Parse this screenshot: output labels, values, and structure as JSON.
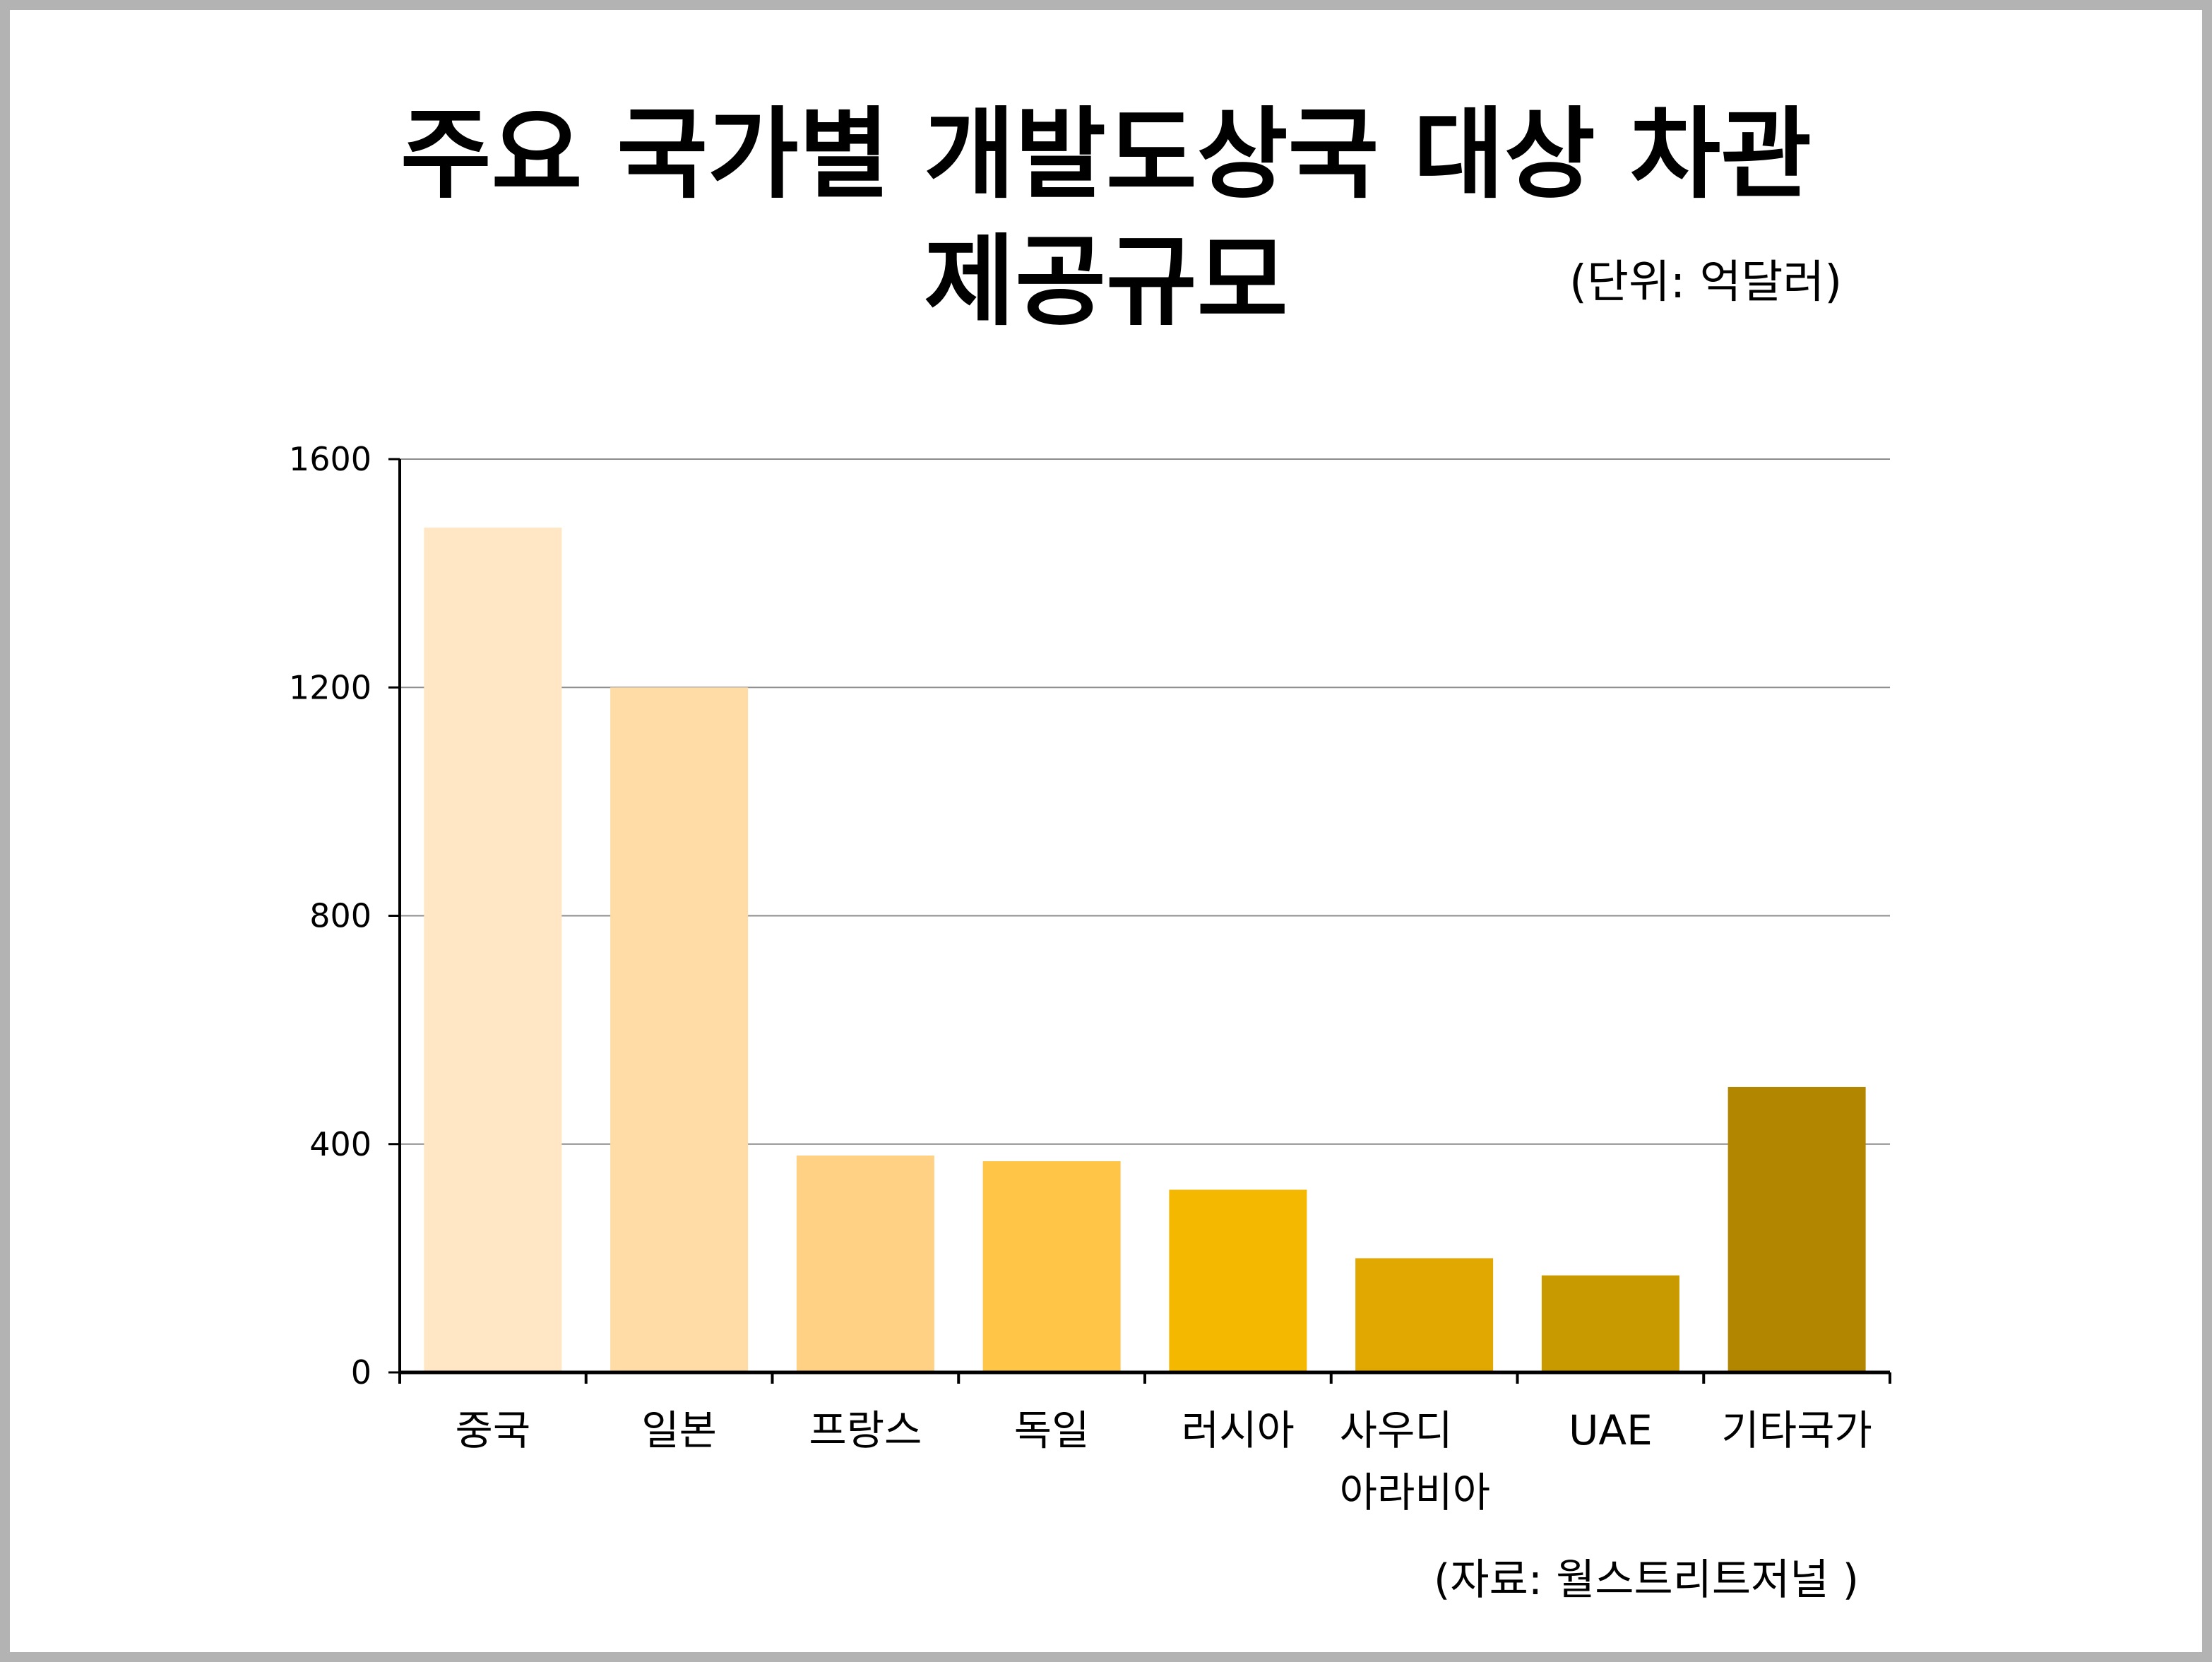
{
  "header": {
    "title_line1": "주요 국가별 개발도상국 대상 차관",
    "title_line2": "제공규모",
    "unit": "(단위: 억달러)"
  },
  "footer": {
    "source": "(자료: 월스트리트저널 )"
  },
  "chart_data": {
    "type": "bar",
    "categories": [
      "중국",
      "일본",
      "프랑스",
      "독일",
      "러시아",
      "사우디 아라비아",
      "UAE",
      "기타국가"
    ],
    "values": [
      1480,
      1200,
      380,
      370,
      320,
      200,
      170,
      500
    ],
    "ylim": [
      0,
      1600
    ],
    "yticks": [
      0,
      400,
      800,
      1200,
      1600
    ],
    "grid": true,
    "legend": "none",
    "colors": [
      "#FFE6C4",
      "#FFDBA6",
      "#FFD185",
      "#FFC547",
      "#F5B800",
      "#E0A800",
      "#C99A00",
      "#B38600"
    ]
  }
}
